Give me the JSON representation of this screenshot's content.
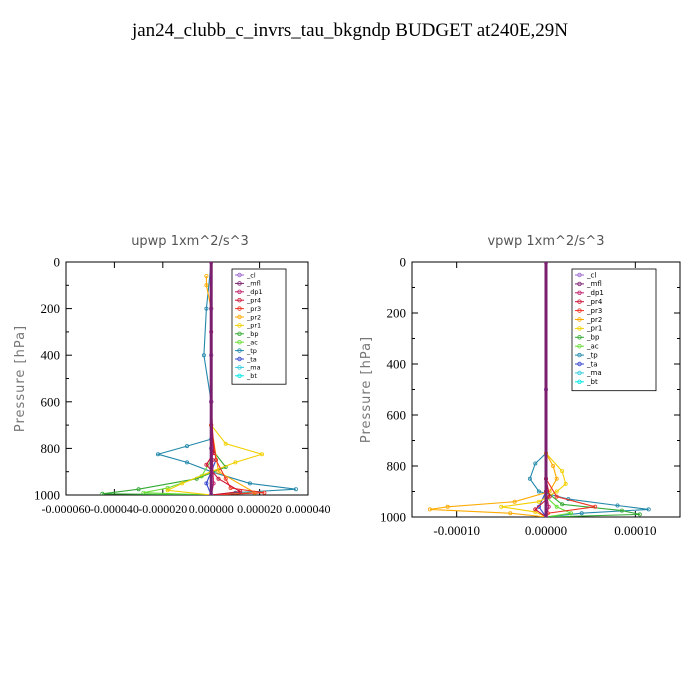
{
  "page_title": "jan24_clubb_c_invrs_tau_bkgndp  BUDGET at240E,29N",
  "chart_data": [
    {
      "type": "line",
      "title": "upwp   1xm^2/s^3",
      "ylabel": "Pressure [hPa]",
      "xlabel": "",
      "xlim": [
        -6e-05,
        4e-05
      ],
      "ylim": [
        1000,
        0
      ],
      "y_inverted": true,
      "xticks": [
        -6e-05,
        -4e-05,
        -2e-05,
        0.0,
        2e-05,
        4e-05
      ],
      "xtick_labels": [
        "-0.000060",
        "-0.000040",
        "-0.000020",
        "0.000000",
        "0.000020",
        "0.000040"
      ],
      "yticks": [
        0,
        200,
        400,
        600,
        800,
        1000
      ],
      "ytick_labels": [
        "0",
        "200",
        "400",
        "600",
        "800",
        "1000"
      ],
      "legend_position": "top-right",
      "series": [
        {
          "name": "_cl",
          "color": "#9966cc",
          "values": [
            [
              0,
              0
            ],
            [
              0,
              200
            ],
            [
              0,
              400
            ],
            [
              0,
              600
            ],
            [
              0,
              800
            ],
            [
              0,
              1000
            ]
          ]
        },
        {
          "name": "_mfl",
          "color": "#7a1f6e",
          "values": [
            [
              0,
              0
            ],
            [
              0,
              200
            ],
            [
              0,
              400
            ],
            [
              0,
              600
            ],
            [
              0,
              800
            ],
            [
              0,
              1000
            ]
          ]
        },
        {
          "name": "_dp1",
          "color": "#c0206b",
          "values": [
            [
              0,
              0
            ],
            [
              0,
              300
            ],
            [
              0,
              600
            ],
            [
              5e-07,
              850
            ],
            [
              1e-06,
              950
            ],
            [
              0,
              1000
            ]
          ]
        },
        {
          "name": "_pr4",
          "color": "#cc1133",
          "values": [
            [
              0,
              0
            ],
            [
              0,
              600
            ],
            [
              1e-06,
              820
            ],
            [
              -2e-06,
              870
            ],
            [
              3e-06,
              930
            ],
            [
              1.2e-05,
              985
            ],
            [
              0,
              1000
            ]
          ]
        },
        {
          "name": "_pr3",
          "color": "#ee3322",
          "values": [
            [
              0,
              0
            ],
            [
              0,
              700
            ],
            [
              2e-06,
              850
            ],
            [
              6e-06,
              930
            ],
            [
              8e-06,
              970
            ],
            [
              2.2e-05,
              990
            ],
            [
              0,
              1000
            ]
          ]
        },
        {
          "name": "_pr2",
          "color": "#ffaa00",
          "values": [
            [
              -2e-06,
              60
            ],
            [
              -2e-06,
              100
            ],
            [
              0,
              200
            ],
            [
              0,
              700
            ],
            [
              3e-06,
              900
            ],
            [
              1.8e-05,
              990
            ],
            [
              0,
              1000
            ]
          ]
        },
        {
          "name": "_pr1",
          "color": "#f2d000",
          "values": [
            [
              0,
              0
            ],
            [
              0,
              700
            ],
            [
              6e-06,
              780
            ],
            [
              2.1e-05,
              825
            ],
            [
              1e-05,
              860
            ],
            [
              0,
              900
            ],
            [
              -1.2e-05,
              950
            ],
            [
              -1.8e-05,
              980
            ],
            [
              0,
              1000
            ]
          ]
        },
        {
          "name": "_bp",
          "color": "#33aa33",
          "values": [
            [
              0,
              0
            ],
            [
              0,
              800
            ],
            [
              6e-06,
              880
            ],
            [
              -6e-06,
              930
            ],
            [
              -3e-05,
              975
            ],
            [
              -4.5e-05,
              995
            ],
            [
              0,
              1000
            ]
          ]
        },
        {
          "name": "_ac",
          "color": "#66dd33",
          "values": [
            [
              0,
              0
            ],
            [
              0,
              850
            ],
            [
              -4e-06,
              920
            ],
            [
              -1.8e-05,
              970
            ],
            [
              -2.8e-05,
              990
            ],
            [
              0,
              1000
            ]
          ]
        },
        {
          "name": "_tp",
          "color": "#2288aa",
          "values": [
            [
              0,
              0
            ],
            [
              -2e-06,
              200
            ],
            [
              -3e-06,
              400
            ],
            [
              0,
              600
            ],
            [
              0,
              760
            ],
            [
              -1e-05,
              790
            ],
            [
              -2.2e-05,
              825
            ],
            [
              -1e-05,
              860
            ],
            [
              0,
              900
            ],
            [
              1.6e-05,
              950
            ],
            [
              3.5e-05,
              975
            ],
            [
              1e-05,
              990
            ],
            [
              0,
              1000
            ]
          ]
        },
        {
          "name": "_ta",
          "color": "#3344cc",
          "values": [
            [
              0,
              0
            ],
            [
              0,
              700
            ],
            [
              2e-06,
              850
            ],
            [
              -2e-06,
              950
            ],
            [
              0,
              1000
            ]
          ]
        },
        {
          "name": "_ma",
          "color": "#33ccdd",
          "values": [
            [
              0,
              0
            ],
            [
              0,
              1000
            ]
          ]
        },
        {
          "name": "_bt",
          "color": "#00e6e6",
          "values": [
            [
              0,
              0
            ],
            [
              0,
              1000
            ]
          ]
        }
      ]
    },
    {
      "type": "line",
      "title": "vpwp   1xm^2/s^3",
      "ylabel": "Pressure [hPa]",
      "xlabel": "",
      "xlim": [
        -0.00015,
        0.00015
      ],
      "ylim": [
        1000,
        0
      ],
      "y_inverted": true,
      "xticks": [
        -0.0001,
        0.0,
        0.0001
      ],
      "xtick_labels": [
        "-0.00010",
        "0.00000",
        "0.00010"
      ],
      "yticks": [
        0,
        200,
        400,
        600,
        800,
        1000
      ],
      "ytick_labels": [
        "0",
        "200",
        "400",
        "600",
        "800",
        "1000"
      ],
      "legend_position": "top-right",
      "series": [
        {
          "name": "_cl",
          "color": "#9966cc",
          "values": [
            [
              0,
              0
            ],
            [
              0,
              500
            ],
            [
              0,
              1000
            ]
          ]
        },
        {
          "name": "_mfl",
          "color": "#7a1f6e",
          "values": [
            [
              0,
              0
            ],
            [
              0,
              500
            ],
            [
              0,
              1000
            ]
          ]
        },
        {
          "name": "_dp1",
          "color": "#c0206b",
          "values": [
            [
              0,
              0
            ],
            [
              0,
              900
            ],
            [
              3e-06,
              960
            ],
            [
              0,
              1000
            ]
          ]
        },
        {
          "name": "_pr4",
          "color": "#cc1133",
          "values": [
            [
              0,
              0
            ],
            [
              0,
              850
            ],
            [
              4e-06,
              920
            ],
            [
              -1.2e-05,
              970
            ],
            [
              0,
              1000
            ]
          ]
        },
        {
          "name": "_pr3",
          "color": "#ee3322",
          "values": [
            [
              0,
              0
            ],
            [
              0,
              850
            ],
            [
              1.2e-05,
              920
            ],
            [
              5.5e-05,
              960
            ],
            [
              2e-06,
              985
            ],
            [
              0,
              1000
            ]
          ]
        },
        {
          "name": "_pr2",
          "color": "#ffaa00",
          "values": [
            [
              0,
              0
            ],
            [
              0,
              750
            ],
            [
              8e-06,
              800
            ],
            [
              1.2e-05,
              850
            ],
            [
              4e-06,
              900
            ],
            [
              -3.5e-05,
              940
            ],
            [
              -0.00011,
              960
            ],
            [
              -0.00013,
              970
            ],
            [
              -4e-05,
              985
            ],
            [
              0,
              1000
            ]
          ]
        },
        {
          "name": "_pr1",
          "color": "#f2d000",
          "values": [
            [
              0,
              0
            ],
            [
              0,
              750
            ],
            [
              1.8e-05,
              820
            ],
            [
              2.2e-05,
              870
            ],
            [
              1.2e-05,
              900
            ],
            [
              -8e-06,
              940
            ],
            [
              -5e-05,
              960
            ],
            [
              -1.2e-05,
              980
            ],
            [
              0,
              1000
            ]
          ]
        },
        {
          "name": "_bp",
          "color": "#33aa33",
          "values": [
            [
              0,
              0
            ],
            [
              0,
              900
            ],
            [
              1.8e-05,
              950
            ],
            [
              8.5e-05,
              975
            ],
            [
              0.000105,
              990
            ],
            [
              0,
              1000
            ]
          ]
        },
        {
          "name": "_ac",
          "color": "#66dd33",
          "values": [
            [
              0,
              0
            ],
            [
              0,
              920
            ],
            [
              1.2e-05,
              960
            ],
            [
              2.8e-05,
              985
            ],
            [
              0,
              1000
            ]
          ]
        },
        {
          "name": "_tp",
          "color": "#2288aa",
          "values": [
            [
              0,
              0
            ],
            [
              0,
              750
            ],
            [
              -1.2e-05,
              790
            ],
            [
              -1.8e-05,
              850
            ],
            [
              -8e-06,
              900
            ],
            [
              2.5e-05,
              930
            ],
            [
              8e-05,
              955
            ],
            [
              0.000115,
              970
            ],
            [
              4e-05,
              985
            ],
            [
              0,
              1000
            ]
          ]
        },
        {
          "name": "_ta",
          "color": "#3344cc",
          "values": [
            [
              0,
              0
            ],
            [
              0,
              900
            ],
            [
              -8e-06,
              960
            ],
            [
              0,
              1000
            ]
          ]
        },
        {
          "name": "_ma",
          "color": "#33ccdd",
          "values": [
            [
              0,
              0
            ],
            [
              0,
              1000
            ]
          ]
        },
        {
          "name": "_bt",
          "color": "#00e6e6",
          "values": [
            [
              0,
              0
            ],
            [
              0,
              1000
            ]
          ]
        }
      ]
    }
  ]
}
